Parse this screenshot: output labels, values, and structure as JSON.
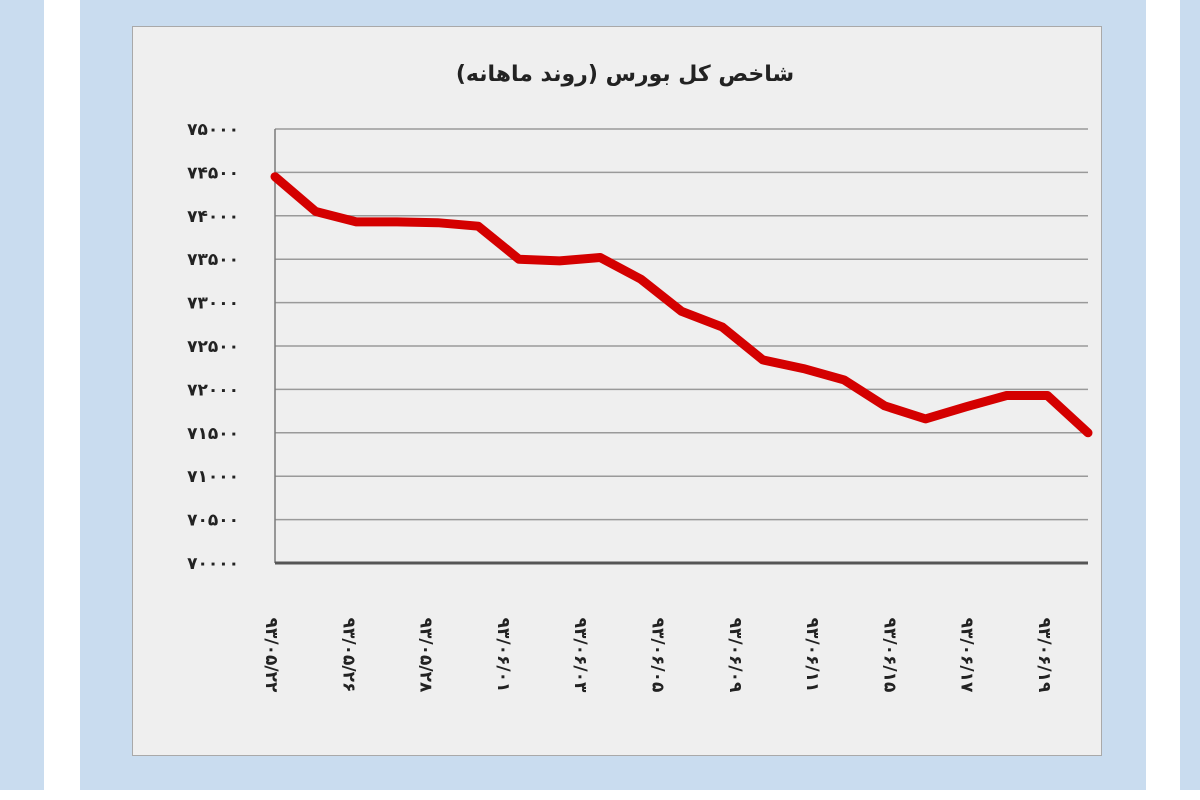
{
  "colors": {
    "background_frame": "#c9dcef",
    "plot_background": "#efefef",
    "gridline": "#9a9a9a",
    "series_line": "#d40000",
    "text": "#222222"
  },
  "chart_data": {
    "type": "line",
    "title": "شاخص کل بورس (روند ماهانه)",
    "xlabel": "",
    "ylabel": "",
    "ylim": [
      70000,
      75000
    ],
    "ytick_values": [
      70000,
      70500,
      71000,
      71500,
      72000,
      72500,
      73000,
      73500,
      74000,
      74500,
      75000
    ],
    "ytick_labels": [
      "۷۰۰۰۰",
      "۷۰۵۰۰",
      "۷۱۰۰۰",
      "۷۱۵۰۰",
      "۷۲۰۰۰",
      "۷۲۵۰۰",
      "۷۳۰۰۰",
      "۷۳۵۰۰",
      "۷۴۰۰۰",
      "۷۴۵۰۰",
      "۷۵۰۰۰"
    ],
    "grid": true,
    "legend": "none",
    "x_tick_labels": [
      "۹۳/۰۵/۲۲",
      "۹۳/۰۵/۲۶",
      "۹۳/۰۵/۲۸",
      "۹۳/۰۶/۰۱",
      "۹۳/۰۶/۰۳",
      "۹۳/۰۶/۰۵",
      "۹۳/۰۶/۰۹",
      "۹۳/۰۶/۱۱",
      "۹۳/۰۶/۱۵",
      "۹۳/۰۶/۱۷",
      "۹۳/۰۶/۱۹"
    ],
    "series": [
      {
        "values": [
          74450,
          74050,
          73930,
          73930,
          73920,
          73880,
          73500,
          73480,
          73520,
          73270,
          72900,
          72720,
          72340,
          72240,
          72110,
          71810,
          71660,
          71800,
          71930,
          71930,
          71500
        ],
        "color": "#d40000"
      }
    ]
  }
}
